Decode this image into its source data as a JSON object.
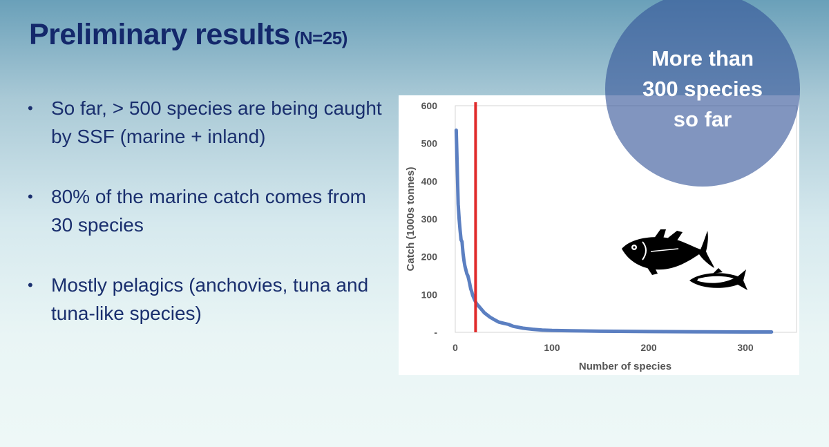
{
  "slide": {
    "title": "Preliminary results",
    "title_suffix": "(N=25)",
    "bullets": [
      "So far, > 500 species are being caught by SSF (marine + inland)",
      "80% of the marine catch comes from 30 species",
      "Mostly pelagics (anchovies, tuna and tuna-like species)"
    ],
    "callout_lines": [
      "More than",
      "300 species",
      "so far"
    ]
  },
  "chart_data": {
    "type": "line",
    "xlabel": "Number of species",
    "ylabel": "Catch (1000s tonnes)",
    "xlim": [
      0,
      330
    ],
    "ylim": [
      0,
      600
    ],
    "x_ticks": [
      "0",
      "100",
      "200",
      "300"
    ],
    "y_ticks": [
      "-",
      "100",
      "200",
      "300",
      "400",
      "500",
      "600"
    ],
    "grid": false,
    "series": [
      {
        "color": "#5b7fc1",
        "x": [
          1,
          2,
          3,
          4,
          5,
          6,
          7,
          8,
          9,
          10,
          11,
          12,
          13,
          14,
          15,
          16,
          17,
          18,
          19,
          20,
          22,
          24,
          26,
          28,
          30,
          33,
          36,
          40,
          45,
          50,
          55,
          60,
          70,
          80,
          90,
          100,
          120,
          150,
          200,
          250,
          300,
          327
        ],
        "y": [
          535,
          440,
          340,
          300,
          270,
          245,
          240,
          210,
          190,
          175,
          165,
          155,
          150,
          140,
          128,
          115,
          108,
          98,
          92,
          86,
          76,
          70,
          64,
          58,
          52,
          46,
          40,
          34,
          27,
          24,
          21,
          16,
          11,
          8,
          6,
          5,
          4,
          3,
          2,
          1.5,
          1,
          1
        ]
      }
    ],
    "reference_line": {
      "x": 21,
      "color": "#e02a2a"
    }
  }
}
